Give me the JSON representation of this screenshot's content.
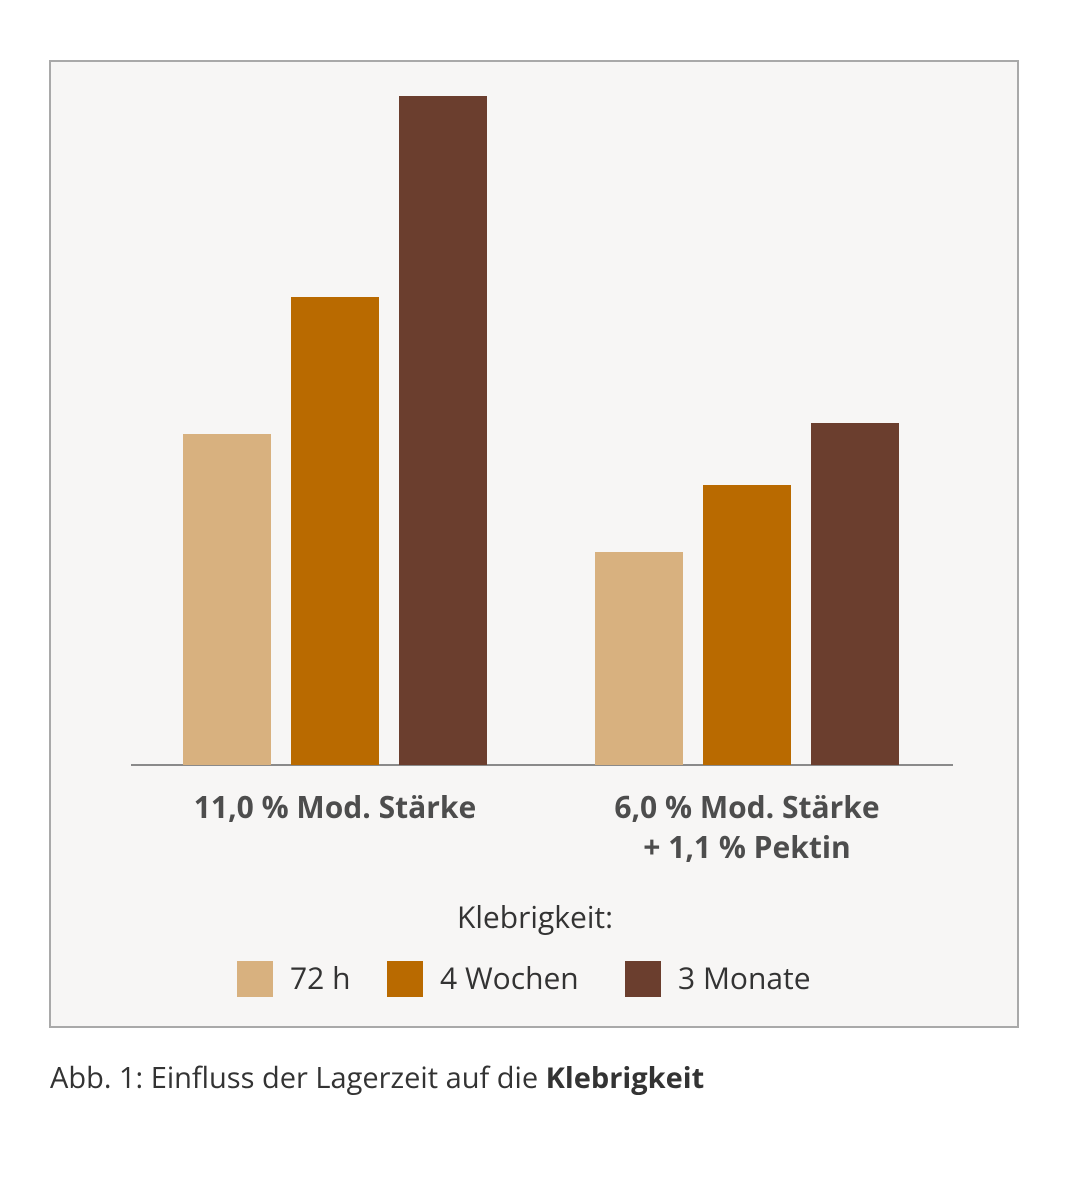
{
  "chart_data": {
    "type": "bar",
    "categories": [
      [
        "11,0 % Mod. Stärke"
      ],
      [
        "6,0 % Mod. Stärke",
        "+ 1,1 % Pektin"
      ]
    ],
    "series": [
      {
        "name": "72 h",
        "color": "#d8b17f",
        "values": [
          331,
          213
        ]
      },
      {
        "name": "4 Wochen",
        "color": "#b96a00",
        "values": [
          468,
          280
        ]
      },
      {
        "name": "3 Monate",
        "color": "#6b3e2e",
        "values": [
          669,
          342
        ]
      }
    ],
    "ylim": [
      0,
      700
    ],
    "legend_title": "Klebrigkeit:",
    "caption": "Abb. 1: Einfluss der Lagerzeit auf die",
    "caption_bold": "Klebrigkeit"
  }
}
